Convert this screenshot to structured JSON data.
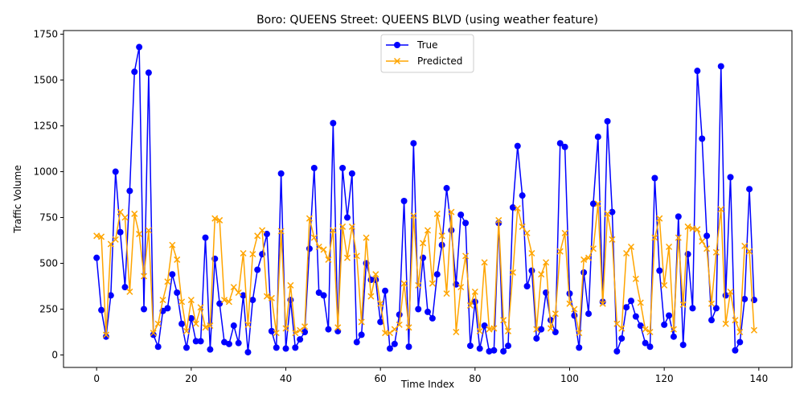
{
  "chart_data": {
    "type": "line",
    "title": "Boro: QUEENS Street: QUEENS BLVD (using weather feature)",
    "xlabel": "Time Index",
    "ylabel": "Traffic Volume",
    "xlim": [
      -7,
      147
    ],
    "ylim": [
      -68,
      1770
    ],
    "x_ticks": [
      0,
      20,
      40,
      60,
      80,
      100,
      120,
      140
    ],
    "y_ticks": [
      0,
      250,
      500,
      750,
      1000,
      1250,
      1500,
      1750
    ],
    "grid": false,
    "legend_position": "top-center",
    "series": [
      {
        "name": "True",
        "color": "#0000ff",
        "marker": "circle",
        "values": [
          530,
          245,
          100,
          325,
          1000,
          670,
          370,
          895,
          1545,
          1680,
          250,
          1540,
          110,
          45,
          240,
          255,
          440,
          340,
          170,
          40,
          200,
          75,
          75,
          640,
          30,
          525,
          280,
          70,
          60,
          160,
          65,
          325,
          15,
          300,
          465,
          550,
          660,
          130,
          40,
          990,
          35,
          300,
          40,
          85,
          125,
          580,
          1020,
          340,
          325,
          140,
          1265,
          130,
          1020,
          750,
          990,
          70,
          110,
          500,
          410,
          410,
          180,
          350,
          35,
          60,
          220,
          840,
          45,
          1155,
          250,
          530,
          235,
          200,
          440,
          600,
          910,
          680,
          385,
          765,
          720,
          50,
          290,
          35,
          160,
          20,
          25,
          720,
          20,
          50,
          805,
          1140,
          870,
          375,
          460,
          90,
          140,
          340,
          190,
          125,
          1155,
          1135,
          335,
          215,
          40,
          450,
          225,
          825,
          1190,
          290,
          1275,
          780,
          20,
          90,
          260,
          295,
          210,
          160,
          65,
          45,
          965,
          460,
          165,
          215,
          100,
          755,
          55,
          550,
          255,
          1550,
          1180,
          650,
          190,
          255,
          1575,
          325,
          970,
          25,
          70,
          305,
          905,
          300
        ]
      },
      {
        "name": "Predicted",
        "color": "#ffa500",
        "marker": "x",
        "values": [
          650,
          645,
          110,
          605,
          630,
          780,
          750,
          345,
          770,
          660,
          430,
          680,
          120,
          170,
          300,
          400,
          600,
          520,
          290,
          130,
          300,
          170,
          260,
          150,
          160,
          745,
          735,
          300,
          290,
          370,
          340,
          555,
          165,
          550,
          650,
          680,
          320,
          310,
          120,
          675,
          145,
          380,
          120,
          135,
          155,
          745,
          640,
          590,
          575,
          520,
          680,
          150,
          700,
          530,
          700,
          540,
          180,
          640,
          320,
          440,
          280,
          120,
          120,
          140,
          165,
          390,
          150,
          760,
          380,
          610,
          680,
          390,
          770,
          650,
          335,
          780,
          125,
          370,
          540,
          270,
          345,
          130,
          505,
          140,
          145,
          735,
          190,
          130,
          450,
          800,
          700,
          665,
          555,
          140,
          440,
          505,
          145,
          225,
          565,
          665,
          280,
          250,
          120,
          520,
          530,
          580,
          825,
          280,
          770,
          630,
          170,
          145,
          555,
          590,
          415,
          285,
          140,
          125,
          640,
          745,
          380,
          590,
          140,
          640,
          275,
          700,
          690,
          685,
          620,
          580,
          280,
          560,
          795,
          170,
          345,
          190,
          125,
          595,
          565,
          135
        ]
      }
    ]
  }
}
